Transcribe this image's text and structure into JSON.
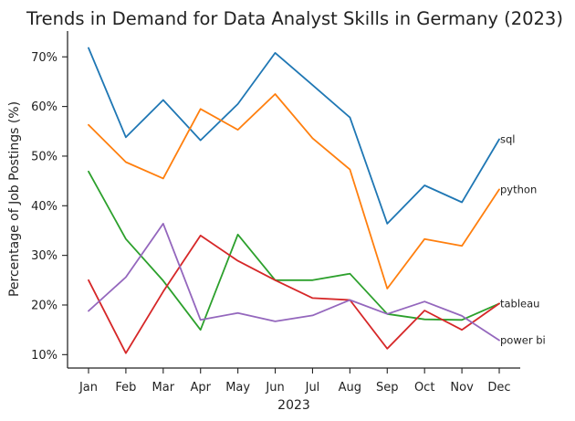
{
  "chart_data": {
    "type": "line",
    "title": "Trends in Demand for Data Analyst Skills in Germany (2023)",
    "xlabel": "2023",
    "ylabel": "Percentage of Job Postings (%)",
    "categories": [
      "Jan",
      "Feb",
      "Mar",
      "Apr",
      "May",
      "Jun",
      "Jul",
      "Aug",
      "Sep",
      "Oct",
      "Nov",
      "Dec"
    ],
    "ylim": [
      7.3,
      75.2
    ],
    "yticks": [
      10,
      20,
      30,
      40,
      50,
      60,
      70
    ],
    "ytick_labels": [
      "10%",
      "20%",
      "30%",
      "40%",
      "50%",
      "60%",
      "70%"
    ],
    "grid": false,
    "legend": "none; series labelled at line ends",
    "series": [
      {
        "name": "sql",
        "color": "#1f77b4",
        "values": [
          71.8,
          53.8,
          61.3,
          53.2,
          60.5,
          70.8,
          64.3,
          57.8,
          36.4,
          44.1,
          40.7,
          53.4
        ]
      },
      {
        "name": "python",
        "color": "#ff7f0e",
        "values": [
          56.3,
          48.8,
          45.5,
          59.5,
          55.3,
          62.5,
          53.6,
          47.3,
          23.3,
          33.3,
          31.9,
          43.3
        ]
      },
      {
        "name": "tableau",
        "color": "#2ca02c",
        "values": [
          46.9,
          33.3,
          24.9,
          15.0,
          34.2,
          25.0,
          25.0,
          26.3,
          18.2,
          17.1,
          17.0,
          20.3
        ]
      },
      {
        "name": "",
        "color": "#d62728",
        "values": [
          25.0,
          10.3,
          22.7,
          34.0,
          28.9,
          25.0,
          21.4,
          21.0,
          11.2,
          18.9,
          15.0,
          20.3
        ]
      },
      {
        "name": "power bi",
        "color": "#9467bd",
        "values": [
          18.8,
          25.6,
          36.4,
          17.0,
          18.4,
          16.7,
          17.9,
          21.0,
          18.2,
          20.7,
          17.8,
          12.9
        ]
      }
    ]
  }
}
